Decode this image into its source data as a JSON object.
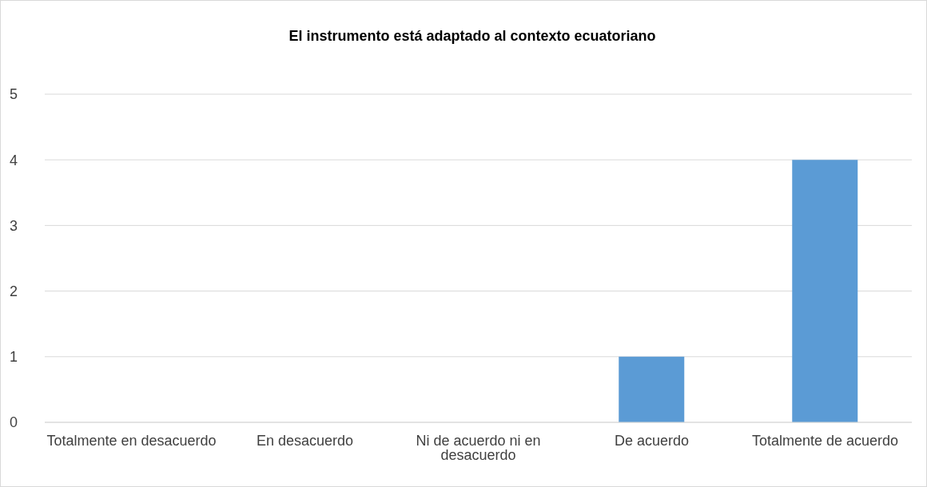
{
  "chart_data": {
    "type": "bar",
    "title": "El instrumento está adaptado al contexto ecuatoriano",
    "categories": [
      "Totalmente en desacuerdo",
      "En desacuerdo",
      "Ni de acuerdo ni en desacuerdo",
      "De acuerdo",
      "Totalmente de acuerdo"
    ],
    "values": [
      0,
      0,
      0,
      1,
      4
    ],
    "color": "#5b9bd5",
    "ylim": [
      0,
      5
    ],
    "yticks": [
      0,
      1,
      2,
      3,
      4,
      5
    ],
    "grid": "y",
    "legend": false
  }
}
